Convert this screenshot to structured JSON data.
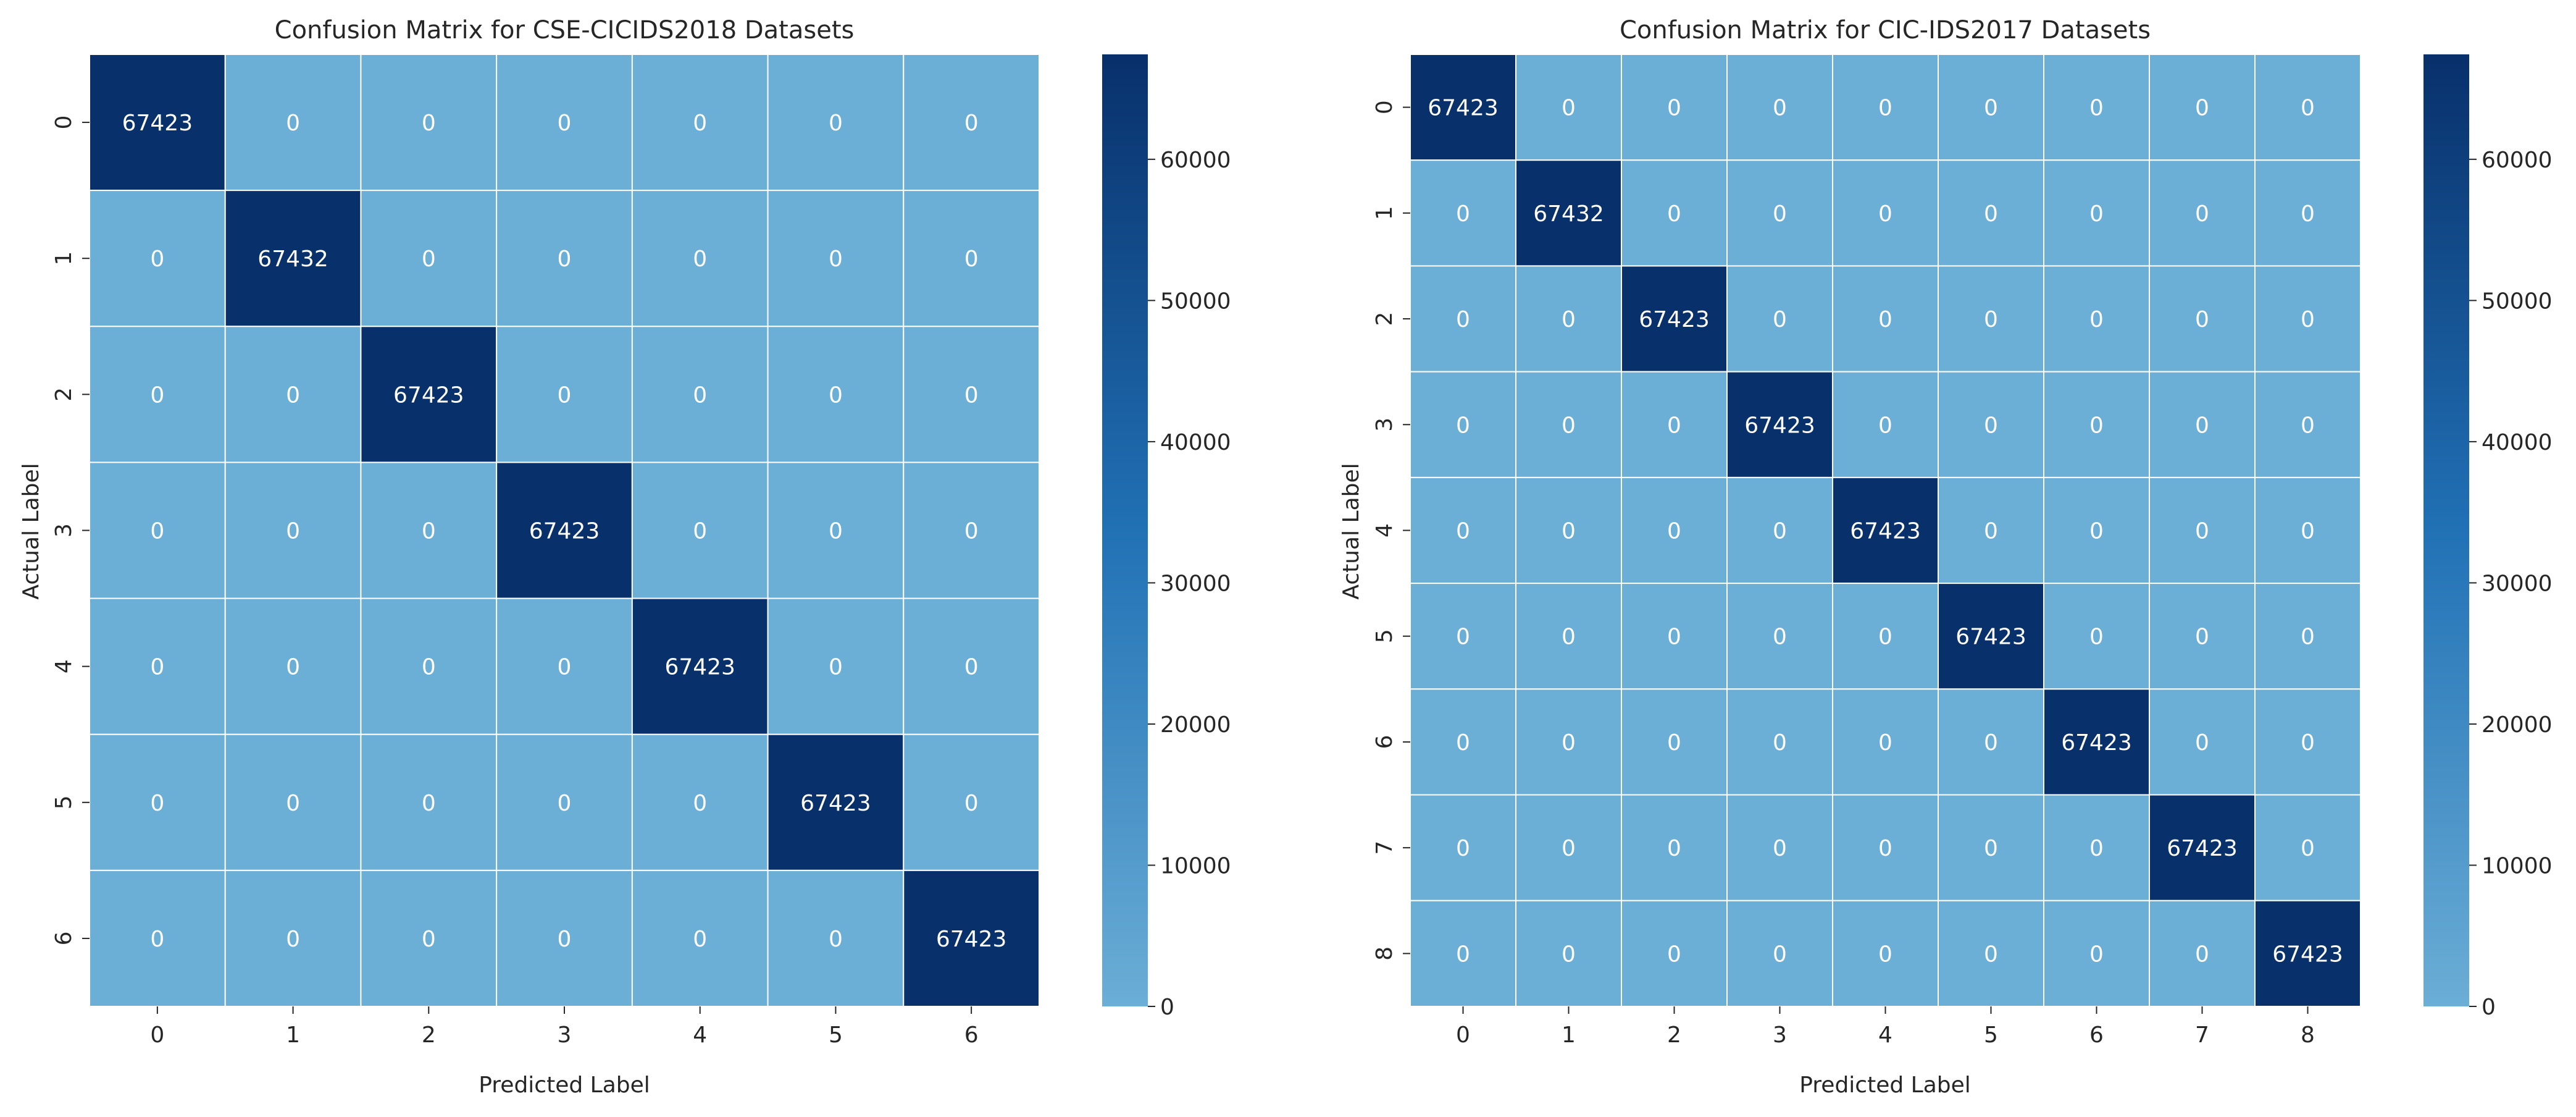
{
  "colors": {
    "cmap_low": "#6baed6",
    "cmap_high": "#08306b",
    "cell_text": "#ffffff",
    "grid_line": "#ffffff",
    "axis_text": "#262626"
  },
  "chart_data": [
    {
      "type": "heatmap",
      "title": "Confusion Matrix for CSE-CICIDS2018 Datasets",
      "xlabel": "Predicted Label",
      "ylabel": "Actual Label",
      "x_tick_labels": [
        "0",
        "1",
        "2",
        "3",
        "4",
        "5",
        "6"
      ],
      "y_tick_labels": [
        "0",
        "1",
        "2",
        "3",
        "4",
        "5",
        "6"
      ],
      "matrix": [
        [
          67423,
          0,
          0,
          0,
          0,
          0,
          0
        ],
        [
          0,
          67432,
          0,
          0,
          0,
          0,
          0
        ],
        [
          0,
          0,
          67423,
          0,
          0,
          0,
          0
        ],
        [
          0,
          0,
          0,
          67423,
          0,
          0,
          0
        ],
        [
          0,
          0,
          0,
          0,
          67423,
          0,
          0
        ],
        [
          0,
          0,
          0,
          0,
          0,
          67423,
          0
        ],
        [
          0,
          0,
          0,
          0,
          0,
          0,
          67423
        ]
      ],
      "colorbar": {
        "min": 0,
        "max": 67432,
        "ticks": [
          0,
          10000,
          20000,
          30000,
          40000,
          50000,
          60000
        ]
      }
    },
    {
      "type": "heatmap",
      "title": "Confusion Matrix for CIC-IDS2017 Datasets",
      "xlabel": "Predicted Label",
      "ylabel": "Actual Label",
      "x_tick_labels": [
        "0",
        "1",
        "2",
        "3",
        "4",
        "5",
        "6",
        "7",
        "8"
      ],
      "y_tick_labels": [
        "0",
        "1",
        "2",
        "3",
        "4",
        "5",
        "6",
        "7",
        "8"
      ],
      "matrix": [
        [
          67423,
          0,
          0,
          0,
          0,
          0,
          0,
          0,
          0
        ],
        [
          0,
          67432,
          0,
          0,
          0,
          0,
          0,
          0,
          0
        ],
        [
          0,
          0,
          67423,
          0,
          0,
          0,
          0,
          0,
          0
        ],
        [
          0,
          0,
          0,
          67423,
          0,
          0,
          0,
          0,
          0
        ],
        [
          0,
          0,
          0,
          0,
          67423,
          0,
          0,
          0,
          0
        ],
        [
          0,
          0,
          0,
          0,
          0,
          67423,
          0,
          0,
          0
        ],
        [
          0,
          0,
          0,
          0,
          0,
          0,
          67423,
          0,
          0
        ],
        [
          0,
          0,
          0,
          0,
          0,
          0,
          0,
          67423,
          0
        ],
        [
          0,
          0,
          0,
          0,
          0,
          0,
          0,
          0,
          67423
        ]
      ],
      "colorbar": {
        "min": 0,
        "max": 67432,
        "ticks": [
          0,
          10000,
          20000,
          30000,
          40000,
          50000,
          60000
        ]
      }
    }
  ]
}
